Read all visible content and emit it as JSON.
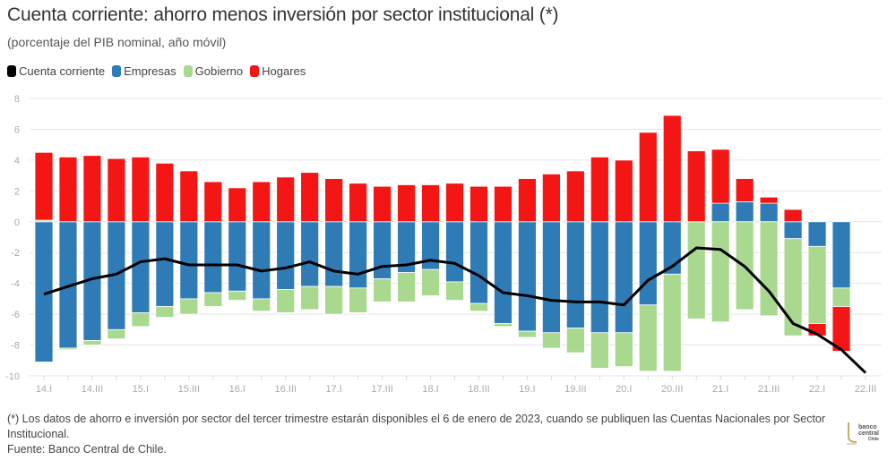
{
  "header": {
    "title": "Cuenta corriente: ahorro menos inversión por sector institucional (*)",
    "subtitle": "(porcentaje del PIB nominal, año móvil)"
  },
  "legend": [
    {
      "label": "Cuenta corriente",
      "color": "#000000"
    },
    {
      "label": "Empresas",
      "color": "#2f7bb6"
    },
    {
      "label": "Gobierno",
      "color": "#a8d98e"
    },
    {
      "label": "Hogares",
      "color": "#f41515"
    }
  ],
  "footer": {
    "note": "(*) Los datos de ahorro e inversión por sector del tercer trimestre estarán disponibles el 6 de enero de 2023, cuando se publiquen las Cuentas Nacionales por Sector Institucional.",
    "source": "Fuente: Banco Central de Chile.",
    "logo_line1": "banco",
    "logo_line2": "central",
    "logo_line3": "Chile"
  },
  "chart_data": {
    "type": "bar",
    "stacked": true,
    "title": "Cuenta corriente: ahorro menos inversión por sector institucional (*)",
    "subtitle": "(porcentaje del PIB nominal, año móvil)",
    "xlabel": "",
    "ylabel": "",
    "ylim": [
      -10,
      8
    ],
    "yticks": [
      8,
      6,
      4,
      2,
      0,
      -2,
      -4,
      -6,
      -8,
      -10
    ],
    "grid": true,
    "legend_position": "top-left",
    "categories": [
      "14.I",
      "14.II",
      "14.III",
      "14.IV",
      "15.I",
      "15.II",
      "15.III",
      "15.IV",
      "16.I",
      "16.II",
      "16.III",
      "16.IV",
      "17.I",
      "17.II",
      "17.III",
      "17.IV",
      "18.I",
      "18.II",
      "18.III",
      "18.IV",
      "19.I",
      "19.II",
      "19.III",
      "19.IV",
      "20.I",
      "20.II",
      "20.III",
      "20.IV",
      "21.I",
      "21.II",
      "21.III",
      "21.IV",
      "22.I",
      "22.II",
      "22.III"
    ],
    "xtick_labels": [
      "14.I",
      "",
      "14.III",
      "",
      "15.I",
      "",
      "15.III",
      "",
      "16.I",
      "",
      "16.III",
      "",
      "17.I",
      "",
      "17.III",
      "",
      "18.I",
      "",
      "18.III",
      "",
      "19.I",
      "",
      "19.III",
      "",
      "20.I",
      "",
      "20.III",
      "",
      "21.I",
      "",
      "21.III",
      "",
      "22.I",
      "",
      "22.III"
    ],
    "series": [
      {
        "name": "Empresas",
        "kind": "bar",
        "color": "#2f7bb6",
        "values": [
          -9.1,
          -8.2,
          -7.7,
          -7.0,
          -5.9,
          -5.5,
          -5.0,
          -4.6,
          -4.5,
          -5.0,
          -4.4,
          -4.2,
          -4.2,
          -4.3,
          -3.7,
          -3.3,
          -3.1,
          -3.9,
          -5.3,
          -6.6,
          -7.1,
          -7.2,
          -6.9,
          -7.2,
          -7.2,
          -5.4,
          -3.4,
          0.0,
          1.2,
          1.3,
          1.2,
          -1.1,
          -1.6,
          -4.3,
          null
        ]
      },
      {
        "name": "Gobierno",
        "kind": "bar",
        "color": "#a8d98e",
        "values": [
          0.1,
          -0.1,
          -0.3,
          -0.6,
          -0.9,
          -0.7,
          -1.0,
          -0.9,
          -0.6,
          -0.8,
          -1.5,
          -1.5,
          -1.8,
          -1.6,
          -1.5,
          -1.9,
          -1.7,
          -1.2,
          -0.5,
          -0.2,
          -0.4,
          -1.0,
          -1.6,
          -2.3,
          -2.2,
          -4.3,
          -6.3,
          -6.3,
          -6.5,
          -5.7,
          -6.1,
          -6.3,
          -5.0,
          -1.2,
          null
        ]
      },
      {
        "name": "Hogares",
        "kind": "bar",
        "color": "#f41515",
        "values": [
          4.4,
          4.2,
          4.3,
          4.1,
          4.2,
          3.8,
          3.3,
          2.6,
          2.2,
          2.6,
          2.9,
          3.2,
          2.8,
          2.5,
          2.3,
          2.4,
          2.4,
          2.5,
          2.3,
          2.3,
          2.8,
          3.1,
          3.3,
          4.2,
          4.0,
          5.8,
          6.9,
          4.6,
          3.5,
          1.5,
          0.4,
          0.8,
          -0.8,
          -2.9,
          null
        ]
      },
      {
        "name": "Cuenta corriente",
        "kind": "line",
        "color": "#000000",
        "values": [
          -4.7,
          -4.2,
          -3.7,
          -3.4,
          -2.6,
          -2.4,
          -2.8,
          -2.8,
          -2.8,
          -3.2,
          -3.0,
          -2.6,
          -3.2,
          -3.4,
          -2.9,
          -2.8,
          -2.5,
          -2.7,
          -3.5,
          -4.6,
          -4.8,
          -5.1,
          -5.2,
          -5.2,
          -5.4,
          -3.8,
          -2.9,
          -1.7,
          -1.8,
          -2.9,
          -4.5,
          -6.6,
          -7.3,
          -8.3,
          -9.8
        ]
      }
    ]
  }
}
